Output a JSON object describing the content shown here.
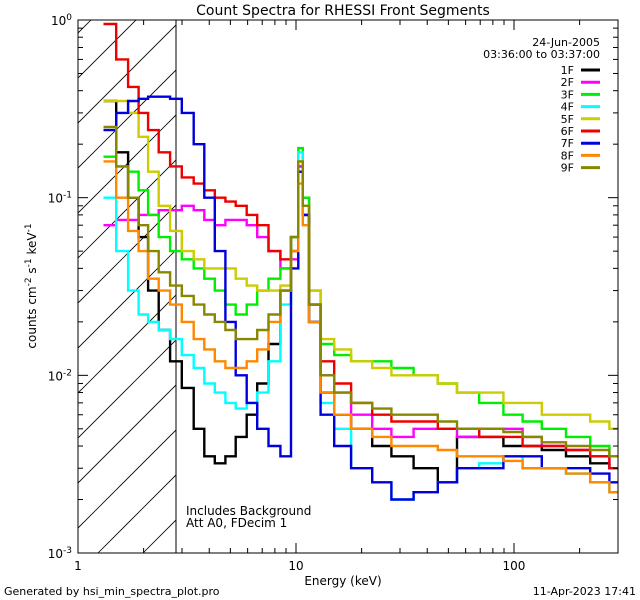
{
  "chart_data": {
    "type": "line",
    "title": "Count Spectra for RHESSI Front Segments",
    "xlabel": "Energy (keV)",
    "ylabel_parts": {
      "base": "counts cm",
      "exp1": "-2",
      "mid": " s",
      "exp2": "-1",
      "unit": " keV",
      "exp3": "-1"
    },
    "x_scale": "log",
    "y_scale": "log",
    "xlim": [
      1,
      300
    ],
    "ylim": [
      0.001,
      1
    ],
    "x_ticks": [
      {
        "value": 1,
        "label": "1"
      },
      {
        "value": 10,
        "label": "10"
      },
      {
        "value": 100,
        "label": "100"
      }
    ],
    "y_ticks": [
      {
        "value": 1,
        "base": "10",
        "exp": "0"
      },
      {
        "value": 0.1,
        "base": "10",
        "exp": "-1"
      },
      {
        "value": 0.01,
        "base": "10",
        "exp": "-2"
      },
      {
        "value": 0.001,
        "base": "10",
        "exp": "-3"
      }
    ],
    "date": "24-Jun-2005",
    "time_range": "03:36:00 to 03:37:00",
    "hatched_below_kev": 3,
    "notes": [
      "Includes Background",
      "Att A0, FDecim 1"
    ],
    "footer_left": "Generated by hsi_min_spectra_plot.pro",
    "footer_right": "11-Apr-2023 17:41",
    "series": [
      {
        "name": "1F",
        "color": "#000000",
        "x": [
          1.4,
          1.6,
          1.8,
          2,
          2.2,
          2.5,
          2.8,
          3.2,
          3.6,
          4,
          4.5,
          5,
          5.6,
          6.3,
          7,
          8,
          9,
          10,
          10.5,
          11,
          12,
          14,
          16,
          20,
          25,
          30,
          40,
          50,
          60,
          80,
          100,
          120,
          150,
          200,
          250,
          300
        ],
        "values": [
          0.35,
          0.18,
          0.1,
          0.06,
          0.03,
          0.018,
          0.012,
          0.0085,
          0.005,
          0.0035,
          0.0032,
          0.0035,
          0.0045,
          0.006,
          0.009,
          0.015,
          0.03,
          0.06,
          0.15,
          0.08,
          0.02,
          0.008,
          0.006,
          0.005,
          0.004,
          0.0035,
          0.003,
          0.0025,
          0.0045,
          0.0045,
          0.004,
          0.004,
          0.0038,
          0.0035,
          0.0032,
          0.003
        ]
      },
      {
        "name": "2F",
        "color": "#ff00ff",
        "x": [
          1.4,
          1.6,
          1.8,
          2,
          2.2,
          2.5,
          2.8,
          3.2,
          3.6,
          4,
          4.5,
          5,
          5.6,
          6.3,
          7,
          8,
          9,
          10,
          10.5,
          11,
          12,
          14,
          16,
          20,
          25,
          30,
          40,
          50,
          60,
          80,
          100,
          120,
          150,
          200,
          250,
          300
        ],
        "values": [
          0.07,
          0.075,
          0.075,
          0.08,
          0.08,
          0.085,
          0.085,
          0.09,
          0.085,
          0.075,
          0.07,
          0.075,
          0.075,
          0.07,
          0.06,
          0.05,
          0.04,
          0.045,
          0.15,
          0.1,
          0.025,
          0.01,
          0.008,
          0.006,
          0.005,
          0.0045,
          0.005,
          0.005,
          0.0045,
          0.005,
          0.005,
          0.0045,
          0.004,
          0.0038,
          0.0035,
          0.003
        ]
      },
      {
        "name": "3F",
        "color": "#00ee00",
        "x": [
          1.4,
          1.6,
          1.8,
          2,
          2.2,
          2.5,
          2.8,
          3.2,
          3.6,
          4,
          4.5,
          5,
          5.6,
          6.3,
          7,
          8,
          9,
          10,
          10.5,
          11,
          12,
          14,
          16,
          20,
          25,
          30,
          40,
          50,
          60,
          80,
          100,
          120,
          150,
          200,
          250,
          300
        ],
        "values": [
          0.17,
          0.15,
          0.14,
          0.11,
          0.08,
          0.06,
          0.05,
          0.045,
          0.04,
          0.035,
          0.03,
          0.025,
          0.022,
          0.025,
          0.03,
          0.035,
          0.04,
          0.06,
          0.19,
          0.1,
          0.03,
          0.015,
          0.013,
          0.012,
          0.012,
          0.011,
          0.01,
          0.009,
          0.008,
          0.007,
          0.006,
          0.0055,
          0.005,
          0.0045,
          0.004,
          0.0035
        ]
      },
      {
        "name": "4F",
        "color": "#00ffff",
        "x": [
          1.4,
          1.6,
          1.8,
          2,
          2.2,
          2.5,
          2.8,
          3.2,
          3.6,
          4,
          4.5,
          5,
          5.6,
          6.3,
          7,
          8,
          9,
          10,
          10.5,
          11,
          12,
          14,
          16,
          20,
          25,
          30,
          40,
          50,
          60,
          80,
          100,
          120,
          150,
          200,
          250,
          300
        ],
        "values": [
          0.1,
          0.05,
          0.03,
          0.022,
          0.02,
          0.018,
          0.016,
          0.013,
          0.011,
          0.009,
          0.008,
          0.007,
          0.0065,
          0.007,
          0.008,
          0.012,
          0.025,
          0.05,
          0.18,
          0.09,
          0.02,
          0.007,
          0.005,
          0.003,
          0.0025,
          0.002,
          0.0022,
          0.0025,
          0.003,
          0.0032,
          0.0035,
          0.003,
          0.003,
          0.0028,
          0.0025,
          0.0022
        ]
      },
      {
        "name": "5F",
        "color": "#cccc00",
        "x": [
          1.4,
          1.6,
          1.8,
          2,
          2.2,
          2.5,
          2.8,
          3.2,
          3.6,
          4,
          4.5,
          5,
          5.6,
          6.3,
          7,
          8,
          9,
          10,
          10.5,
          11,
          12,
          14,
          16,
          20,
          25,
          30,
          40,
          50,
          60,
          80,
          100,
          120,
          150,
          200,
          250,
          300
        ],
        "values": [
          0.35,
          0.35,
          0.3,
          0.22,
          0.14,
          0.09,
          0.065,
          0.05,
          0.045,
          0.04,
          0.04,
          0.04,
          0.035,
          0.032,
          0.03,
          0.03,
          0.032,
          0.05,
          0.16,
          0.09,
          0.03,
          0.016,
          0.014,
          0.012,
          0.011,
          0.01,
          0.01,
          0.009,
          0.008,
          0.008,
          0.007,
          0.007,
          0.006,
          0.006,
          0.0055,
          0.005
        ]
      },
      {
        "name": "6F",
        "color": "#ee0000",
        "x": [
          1.4,
          1.6,
          1.8,
          2,
          2.2,
          2.5,
          2.8,
          3.2,
          3.6,
          4,
          4.5,
          5,
          5.6,
          6.3,
          7,
          8,
          9,
          10,
          10.5,
          11,
          12,
          14,
          16,
          20,
          25,
          30,
          40,
          50,
          60,
          80,
          100,
          120,
          150,
          200,
          250,
          300
        ],
        "values": [
          0.95,
          0.6,
          0.42,
          0.3,
          0.24,
          0.18,
          0.15,
          0.13,
          0.12,
          0.11,
          0.1,
          0.095,
          0.09,
          0.08,
          0.07,
          0.05,
          0.045,
          0.05,
          0.14,
          0.08,
          0.025,
          0.012,
          0.009,
          0.007,
          0.006,
          0.0055,
          0.0055,
          0.005,
          0.005,
          0.0045,
          0.0045,
          0.004,
          0.004,
          0.0038,
          0.0035,
          0.003
        ]
      },
      {
        "name": "7F",
        "color": "#0000dd",
        "x": [
          1.4,
          1.6,
          1.8,
          2,
          2.2,
          2.5,
          2.8,
          3.2,
          3.6,
          4,
          4.5,
          5,
          5.6,
          6.3,
          7,
          8,
          9,
          10,
          10.5,
          11,
          12,
          14,
          16,
          20,
          25,
          30,
          40,
          50,
          60,
          80,
          100,
          120,
          150,
          200,
          250,
          300
        ],
        "values": [
          0.24,
          0.3,
          0.35,
          0.36,
          0.37,
          0.37,
          0.36,
          0.3,
          0.2,
          0.1,
          0.05,
          0.02,
          0.01,
          0.007,
          0.005,
          0.004,
          0.0035,
          0.04,
          0.14,
          0.08,
          0.02,
          0.006,
          0.004,
          0.003,
          0.0025,
          0.002,
          0.0022,
          0.0025,
          0.003,
          0.003,
          0.0035,
          0.0035,
          0.003,
          0.003,
          0.0028,
          0.0025
        ]
      },
      {
        "name": "8F",
        "color": "#ff8800",
        "x": [
          1.4,
          1.6,
          1.8,
          2,
          2.2,
          2.5,
          2.8,
          3.2,
          3.6,
          4,
          4.5,
          5,
          5.6,
          6.3,
          7,
          8,
          9,
          10,
          10.5,
          11,
          12,
          14,
          16,
          20,
          25,
          30,
          40,
          50,
          60,
          80,
          100,
          120,
          150,
          200,
          250,
          300
        ],
        "values": [
          0.16,
          0.1,
          0.065,
          0.05,
          0.035,
          0.03,
          0.025,
          0.02,
          0.016,
          0.014,
          0.012,
          0.011,
          0.011,
          0.012,
          0.014,
          0.02,
          0.03,
          0.05,
          0.12,
          0.07,
          0.02,
          0.008,
          0.006,
          0.005,
          0.0045,
          0.004,
          0.004,
          0.0038,
          0.0035,
          0.0035,
          0.0033,
          0.003,
          0.003,
          0.0028,
          0.0025,
          0.0022
        ]
      },
      {
        "name": "9F",
        "color": "#888800",
        "x": [
          1.4,
          1.6,
          1.8,
          2,
          2.2,
          2.5,
          2.8,
          3.2,
          3.6,
          4,
          4.5,
          5,
          5.6,
          6.3,
          7,
          8,
          9,
          10,
          10.5,
          11,
          12,
          14,
          16,
          20,
          25,
          30,
          40,
          50,
          60,
          80,
          100,
          120,
          150,
          200,
          250,
          300
        ],
        "values": [
          0.25,
          0.15,
          0.1,
          0.07,
          0.05,
          0.038,
          0.032,
          0.028,
          0.025,
          0.022,
          0.02,
          0.018,
          0.016,
          0.016,
          0.018,
          0.022,
          0.03,
          0.06,
          0.16,
          0.09,
          0.025,
          0.01,
          0.008,
          0.007,
          0.0065,
          0.006,
          0.006,
          0.0055,
          0.005,
          0.005,
          0.0048,
          0.0045,
          0.0042,
          0.004,
          0.0038,
          0.0035
        ]
      }
    ]
  }
}
